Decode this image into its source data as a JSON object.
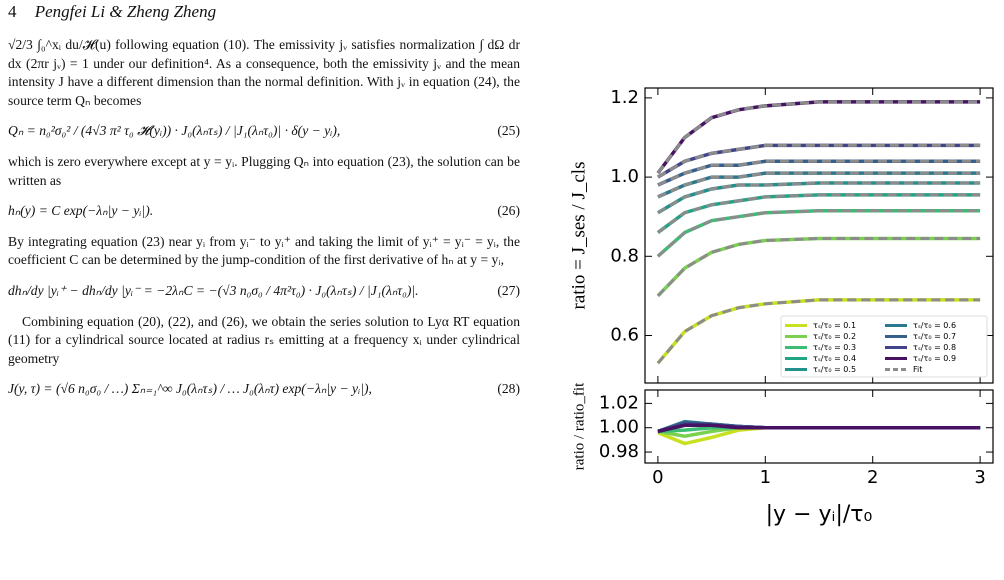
{
  "header": {
    "page_number": "4",
    "authors": "Pengfei Li & Zheng Zheng"
  },
  "paragraphs": [
    "√2/3 ∫₀^xᵢ du/𝓗(u) following equation (10). The emissivity jᵥ satisfies normalization ∫ dΩ dr dx (2πr jᵥ) = 1 under our definition⁴. As a consequence, both the emissivity jᵥ and the mean intensity J have a different dimension than the normal definition. With jᵥ in equation (24), the source term Qₙ becomes",
    "which is zero everywhere except at y = yᵢ. Plugging Qₙ into equation (23), the solution can be written as",
    "By integrating equation (23) near yᵢ from yᵢ⁻ to yᵢ⁺ and taking the limit of yᵢ⁺ = yᵢ⁻ = yᵢ, the coefficient C can be determined by the jump-condition of the first derivative of hₙ at y = yᵢ,",
    "Combining equation (20), (22), and (26), we obtain the series solution to Lyα RT equation (11) for a cylindrical source located at radius rₛ emitting at a frequency xᵢ under cylindrical geometry"
  ],
  "equations": [
    {
      "text": "Qₙ = n₀²σ₀² / (4√3 π² τ₀ 𝓗(yᵢ)) · J₀(λₙτₛ) / |J₁(λₙτ₀)| · δ(y − yᵢ),",
      "number": "(25)"
    },
    {
      "text": "hₙ(y) = C exp(−λₙ|y − yᵢ|).",
      "number": "(26)"
    },
    {
      "text": "dhₙ/dy |yᵢ⁺ − dhₙ/dy |yᵢ⁻ = −2λₙC = −(√3 n₀σ₀ / 4π²τ₀) · J₀(λₙτₛ) / |J₁(λₙτ₀)|.",
      "number": "(27)"
    },
    {
      "text": "J(y, τ) = (√6 n₀σ₀ / …) Σₙ₌₁^∞ J₀(λₙτₛ) / … J₀(λₙτ) exp(−λₙ|y − yᵢ|),",
      "number": "(28)"
    }
  ],
  "chart_data": [
    {
      "type": "line",
      "y_label": "ratio = J_ses / J_cls",
      "x": [
        0,
        0.25,
        0.5,
        0.75,
        1,
        1.5,
        2,
        3
      ],
      "xlim": [
        -0.12,
        3.12
      ],
      "xticks": [
        0,
        1,
        2,
        3
      ],
      "ylim": [
        0.48,
        1.225
      ],
      "yticks": [
        0.6,
        0.8,
        {
          "value": 1,
          "label": "1.0"
        },
        1.2
      ],
      "legend": "lower right",
      "fit_name": "Fit",
      "fit_color": "#8c8c8c",
      "series": [
        {
          "name": "τₛ/τ₀ = 0.1",
          "color": "#c8e020",
          "values": [
            0.53,
            0.61,
            0.65,
            0.67,
            0.68,
            0.69,
            0.69,
            0.69
          ],
          "fit_values": [
            0.53,
            0.61,
            0.65,
            0.67,
            0.68,
            0.69,
            0.69,
            0.69
          ]
        },
        {
          "name": "τₛ/τ₀ = 0.2",
          "color": "#7ad151",
          "values": [
            0.7,
            0.77,
            0.81,
            0.83,
            0.84,
            0.845,
            0.845,
            0.845
          ],
          "fit_values": [
            0.7,
            0.77,
            0.81,
            0.83,
            0.84,
            0.845,
            0.845,
            0.845
          ]
        },
        {
          "name": "τₛ/τ₀ = 0.3",
          "color": "#3dbc74",
          "values": [
            0.8,
            0.86,
            0.89,
            0.9,
            0.91,
            0.915,
            0.915,
            0.915
          ],
          "fit_values": [
            0.8,
            0.86,
            0.89,
            0.9,
            0.91,
            0.915,
            0.915,
            0.915
          ]
        },
        {
          "name": "τₛ/τ₀ = 0.4",
          "color": "#20a486",
          "values": [
            0.86,
            0.91,
            0.93,
            0.94,
            0.95,
            0.955,
            0.955,
            0.955
          ],
          "fit_values": [
            0.86,
            0.91,
            0.93,
            0.94,
            0.95,
            0.955,
            0.955,
            0.955
          ]
        },
        {
          "name": "τₛ/τ₀ = 0.5",
          "color": "#21918c",
          "values": [
            0.91,
            0.95,
            0.97,
            0.98,
            0.98,
            0.985,
            0.985,
            0.985
          ],
          "fit_values": [
            0.91,
            0.95,
            0.97,
            0.98,
            0.98,
            0.985,
            0.985,
            0.985
          ]
        },
        {
          "name": "τₛ/τ₀ = 0.6",
          "color": "#2a788e",
          "values": [
            0.95,
            0.98,
            1.0,
            1.0,
            1.01,
            1.01,
            1.01,
            1.01
          ],
          "fit_values": [
            0.95,
            0.98,
            1.0,
            1.0,
            1.01,
            1.01,
            1.01,
            1.01
          ]
        },
        {
          "name": "τₛ/τ₀ = 0.7",
          "color": "#355f8d",
          "values": [
            0.98,
            1.01,
            1.03,
            1.03,
            1.04,
            1.04,
            1.04,
            1.04
          ],
          "fit_values": [
            0.98,
            1.01,
            1.03,
            1.03,
            1.04,
            1.04,
            1.04,
            1.04
          ]
        },
        {
          "name": "τₛ/τ₀ = 0.8",
          "color": "#414487",
          "values": [
            1.0,
            1.04,
            1.06,
            1.07,
            1.08,
            1.08,
            1.08,
            1.08
          ],
          "fit_values": [
            1.0,
            1.04,
            1.06,
            1.07,
            1.08,
            1.08,
            1.08,
            1.08
          ]
        },
        {
          "name": "τₛ/τ₀ = 0.9",
          "color": "#471164",
          "values": [
            1.01,
            1.1,
            1.15,
            1.17,
            1.18,
            1.19,
            1.19,
            1.19
          ],
          "fit_values": [
            1.01,
            1.1,
            1.15,
            1.17,
            1.18,
            1.19,
            1.19,
            1.19
          ]
        }
      ]
    },
    {
      "type": "line",
      "y_label": "ratio / ratio_fit",
      "x_label": "|y − yᵢ|/τ₀",
      "x": [
        0,
        0.25,
        0.5,
        0.75,
        1,
        1.5,
        2,
        3
      ],
      "xlim": [
        -0.12,
        3.12
      ],
      "xticks": [
        0,
        1,
        2,
        3
      ],
      "ylim": [
        0.971,
        1.031
      ],
      "yticks": [
        0.98,
        {
          "value": 1,
          "label": "1.00"
        },
        1.02
      ],
      "series": [
        {
          "color": "#c8e020",
          "values": [
            0.996,
            0.987,
            0.992,
            0.998,
            1.0,
            1.0,
            1.0,
            1.0
          ]
        },
        {
          "color": "#7ad151",
          "values": [
            0.997,
            0.993,
            0.997,
            1.0,
            1.0,
            1.0,
            1.0,
            1.0
          ]
        },
        {
          "color": "#3dbc74",
          "values": [
            0.997,
            0.998,
            1.0,
            1.0,
            1.0,
            1.0,
            1.0,
            1.0
          ]
        },
        {
          "color": "#20a486",
          "values": [
            0.997,
            1.002,
            1.002,
            1.001,
            1.0,
            1.0,
            1.0,
            1.0
          ]
        },
        {
          "color": "#21918c",
          "values": [
            0.997,
            1.003,
            1.003,
            1.001,
            1.0,
            1.0,
            1.0,
            1.0
          ]
        },
        {
          "color": "#2a788e",
          "values": [
            0.997,
            1.005,
            1.003,
            1.001,
            1.0,
            1.0,
            1.0,
            1.0
          ]
        },
        {
          "color": "#355f8d",
          "values": [
            0.997,
            1.004,
            1.003,
            1.001,
            1.0,
            1.0,
            1.0,
            1.0
          ]
        },
        {
          "color": "#414487",
          "values": [
            0.997,
            1.003,
            1.002,
            1.001,
            1.0,
            1.0,
            1.0,
            1.0
          ]
        },
        {
          "color": "#471164",
          "values": [
            0.997,
            1.002,
            1.002,
            1.0,
            1.0,
            1.0,
            1.0,
            1.0
          ]
        }
      ]
    }
  ]
}
